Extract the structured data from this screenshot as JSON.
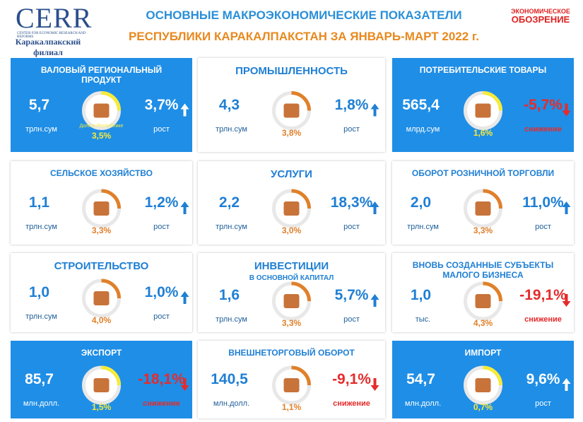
{
  "header": {
    "logo": "CERR",
    "logo_subtitle": "CENTER FOR ECONOMIC RESEARCH AND REFORMS",
    "branch": "Каракалпакский филиал",
    "title_line1": "ОСНОВНЫЕ МАКРОЭКОНОМИЧЕСКИЕ ПОКАЗАТЕЛИ",
    "title_line2": "РЕСПУБЛИКИ КАРАКАЛПАКСТАН ЗА ЯНВАРЬ-МАРТ 2022 г.",
    "partner_line1": "ЭКОНОМИЧЕСКОЕ",
    "partner_line2": "ОБОЗРЕНИЕ"
  },
  "cards": [
    {
      "title": "ВАЛОВЫЙ РЕГИОНАЛЬНЫЙ ПРОДУКТ",
      "value": "5,7",
      "unit": "трлн.сум",
      "share_note": "Доля в Республике",
      "share": "3,5%",
      "growth": "3,7%",
      "growth_label": "рост",
      "trend": "up",
      "filled": true
    },
    {
      "title": "ПРОМЫШЛЕННОСТЬ",
      "value": "4,3",
      "unit": "трлн.сум",
      "share": "3,8%",
      "growth": "1,8%",
      "growth_label": "рост",
      "trend": "up",
      "filled": false
    },
    {
      "title": "ПОТРЕБИТЕЛЬСКИЕ ТОВАРЫ",
      "value": "565,4",
      "unit": "млрд.сум",
      "share": "1,6%",
      "growth": "-5,7%",
      "growth_label": "снижение",
      "trend": "down",
      "filled": true
    },
    {
      "title": "СЕЛЬСКОЕ ХОЗЯЙСТВО",
      "value": "1,1",
      "unit": "трлн.сум",
      "share": "3,3%",
      "growth": "1,2%",
      "growth_label": "рост",
      "trend": "up",
      "filled": false
    },
    {
      "title": "УСЛУГИ",
      "value": "2,2",
      "unit": "трлн.сум",
      "share": "3,0%",
      "growth": "18,3%",
      "growth_label": "рост",
      "trend": "up",
      "filled": false
    },
    {
      "title": "ОБОРОТ РОЗНИЧНОЙ ТОРГОВЛИ",
      "value": "2,0",
      "unit": "трлн.сум",
      "share": "3,3%",
      "growth": "11,0%",
      "growth_label": "рост",
      "trend": "up",
      "filled": false
    },
    {
      "title": "СТРОИТЕЛЬСТВО",
      "value": "1,0",
      "unit": "трлн.сум",
      "share": "4,0%",
      "growth": "1,0%",
      "growth_label": "рост",
      "trend": "up",
      "filled": false
    },
    {
      "title": "ИНВЕСТИЦИИ",
      "subtitle": "В ОСНОВНОЙ КАПИТАЛ",
      "value": "1,6",
      "unit": "трлн.сум",
      "share": "3,3%",
      "growth": "5,7%",
      "growth_label": "рост",
      "trend": "up",
      "filled": false
    },
    {
      "title": "ВНОВЬ СОЗДАННЫЕ СУБЪЕКТЫ МАЛОГО БИЗНЕСА",
      "value": "1,0",
      "unit": "тыс.",
      "share": "4,3%",
      "growth": "-19,1%",
      "growth_label": "снижение",
      "trend": "down",
      "filled": false
    },
    {
      "title": "ЭКСПОРТ",
      "value": "85,7",
      "unit": "млн.долл.",
      "share": "1,5%",
      "growth": "-18,1%",
      "growth_label": "снижение",
      "trend": "down",
      "filled": true
    },
    {
      "title": "ВНЕШНЕТОРГОВЫЙ ОБОРОТ",
      "value": "140,5",
      "unit": "млн.долл.",
      "share": "1,1%",
      "growth": "-9,1%",
      "growth_label": "снижение",
      "trend": "down",
      "filled": false
    },
    {
      "title": "ИМПОРТ",
      "value": "54,7",
      "unit": "млн.долл.",
      "share": "0,7%",
      "growth": "9,6%",
      "growth_label": "рост",
      "trend": "up",
      "filled": true
    }
  ]
}
